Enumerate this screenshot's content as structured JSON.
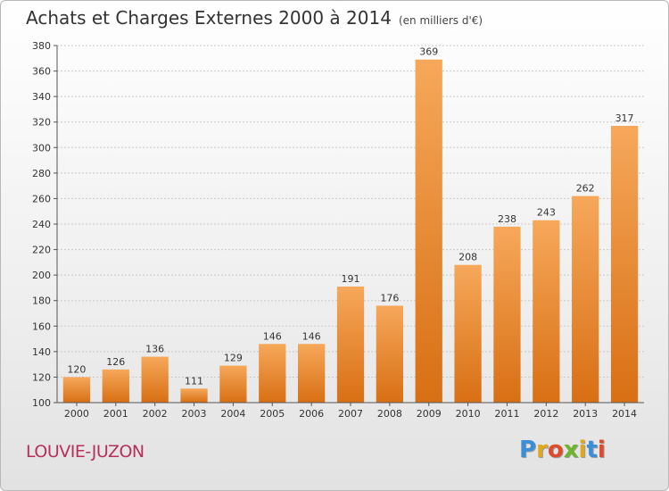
{
  "header": {
    "title": "Achats et Charges Externes 2000 à 2014",
    "unit": "(en milliers d'€)"
  },
  "commune": "LOUVIE-JUZON",
  "brand": {
    "letters": [
      "P",
      "r",
      "o",
      "x",
      "i",
      "t",
      "i"
    ],
    "colors": [
      "#3b8ed8",
      "#e0a81c",
      "#e04a2a",
      "#6cb52c",
      "#e0a81c",
      "#3b8ed8",
      "#e04a2a"
    ]
  },
  "chart_data": {
    "type": "bar",
    "title": "Achats et Charges Externes 2000 à 2014",
    "subtitle": "(en milliers d'€)",
    "xlabel": "",
    "ylabel": "",
    "categories": [
      "2000",
      "2001",
      "2002",
      "2003",
      "2004",
      "2005",
      "2006",
      "2007",
      "2008",
      "2009",
      "2010",
      "2011",
      "2012",
      "2013",
      "2014"
    ],
    "values": [
      120,
      126,
      136,
      111,
      129,
      146,
      146,
      191,
      176,
      369,
      208,
      238,
      243,
      262,
      317
    ],
    "ylim": [
      100,
      380
    ],
    "yticks": [
      100,
      120,
      140,
      160,
      180,
      200,
      220,
      240,
      260,
      280,
      300,
      320,
      340,
      360,
      380
    ],
    "grid": true,
    "legend": "none",
    "bar_color": "#f0902e"
  }
}
